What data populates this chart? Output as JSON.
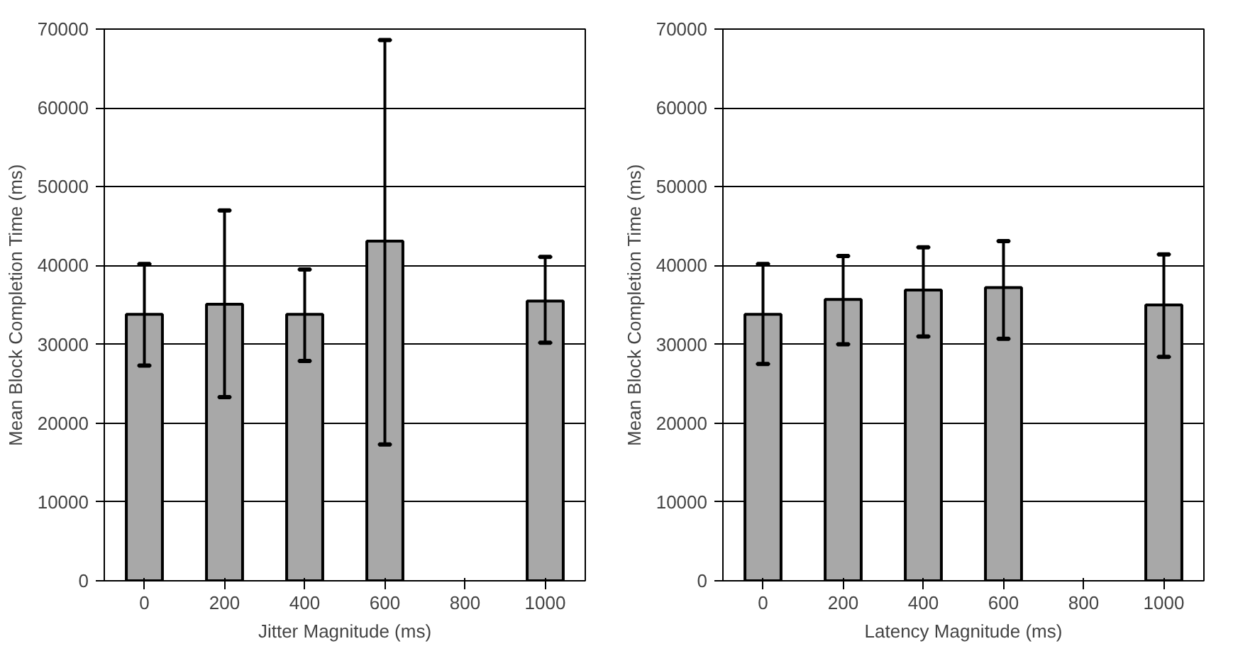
{
  "chart_data": [
    {
      "type": "bar",
      "categories": [
        "0",
        "200",
        "400",
        "600",
        "800",
        "1000"
      ],
      "values": [
        33800,
        35100,
        33800,
        43100,
        null,
        35500
      ],
      "color": "#a8a8a8",
      "errors": [
        [
          27300,
          40200
        ],
        [
          23300,
          47000
        ],
        [
          27900,
          39500
        ],
        [
          17300,
          68600
        ],
        null,
        [
          30200,
          41100
        ]
      ],
      "xlabel": "Jitter Magnitude (ms)",
      "ylabel": "Mean Block Completion Time (ms)",
      "ylim": [
        0,
        70000
      ],
      "yticks": [
        0,
        10000,
        20000,
        30000,
        40000,
        50000,
        60000,
        70000
      ],
      "grid": "y"
    },
    {
      "type": "bar",
      "categories": [
        "0",
        "200",
        "400",
        "600",
        "800",
        "1000"
      ],
      "values": [
        33800,
        35700,
        36900,
        37200,
        null,
        35000
      ],
      "color": "#a8a8a8",
      "errors": [
        [
          27500,
          40200
        ],
        [
          30000,
          41200
        ],
        [
          31000,
          42300
        ],
        [
          30700,
          43100
        ],
        null,
        [
          28400,
          41400
        ]
      ],
      "xlabel": "Latency Magnitude (ms)",
      "ylabel": "Mean Block Completion Time (ms)",
      "ylim": [
        0,
        70000
      ],
      "yticks": [
        0,
        10000,
        20000,
        30000,
        40000,
        50000,
        60000,
        70000
      ],
      "grid": "y"
    }
  ]
}
